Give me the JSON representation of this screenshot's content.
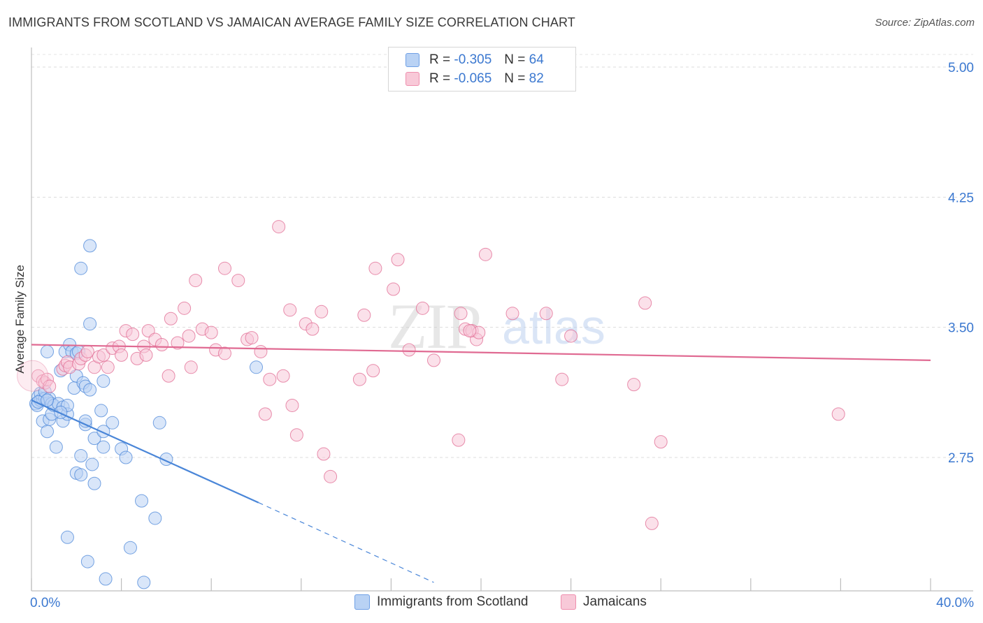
{
  "title": "IMMIGRANTS FROM SCOTLAND VS JAMAICAN AVERAGE FAMILY SIZE CORRELATION CHART",
  "source": "Source: ZipAtlas.com",
  "watermark": {
    "zip": "ZIP",
    "atlas": "atlas"
  },
  "legend": {
    "rows": [
      {
        "r_label": "R =",
        "r_value": "-0.305",
        "n_label": "N =",
        "n_value": "64",
        "color": "#6fa0e6",
        "fill": "#b9d2f4"
      },
      {
        "r_label": "R =",
        "r_value": "-0.065",
        "n_label": "N =",
        "n_value": "82",
        "color": "#ef8fae",
        "fill": "#f8c9d8"
      }
    ]
  },
  "bottom_legend": [
    {
      "label": "Immigrants from Scotland",
      "color": "#6fa0e6",
      "fill": "#b9d2f4"
    },
    {
      "label": "Jamaicans",
      "color": "#ef8fae",
      "fill": "#f8c9d8"
    }
  ],
  "chart_data": {
    "type": "scatter",
    "title": "IMMIGRANTS FROM SCOTLAND VS JAMAICAN AVERAGE FAMILY SIZE CORRELATION CHART",
    "xlabel": "",
    "ylabel": "Average Family Size",
    "xlim": [
      0,
      40
    ],
    "ylim": [
      2.0,
      5.05
    ],
    "x_tick_labels": [
      "0.0%",
      "40.0%"
    ],
    "y_ticks": [
      2.75,
      3.5,
      4.25,
      5.0
    ],
    "y_tick_labels": [
      "2.75",
      "3.50",
      "4.25",
      "5.00"
    ],
    "grid": "horizontal dashed",
    "legend_position": "top-center",
    "series": [
      {
        "name": "Immigrants from Scotland",
        "color": "#4a86d8",
        "fill": "#b9d2f4",
        "trend": {
          "x_start": 0.0,
          "y_start": 3.08,
          "x_solid_end": 10.1,
          "y_solid_end": 2.49,
          "x_dash_end": 17.9,
          "y_dash_end": 2.03
        },
        "points": [
          [
            0.2,
            3.06
          ],
          [
            0.25,
            3.05
          ],
          [
            0.3,
            3.1
          ],
          [
            0.4,
            3.08
          ],
          [
            0.5,
            3.09
          ],
          [
            0.4,
            3.12
          ],
          [
            0.5,
            2.96
          ],
          [
            0.6,
            3.09
          ],
          [
            0.6,
            3.13
          ],
          [
            0.7,
            3.36
          ],
          [
            0.7,
            2.9
          ],
          [
            0.8,
            3.09
          ],
          [
            0.8,
            2.97
          ],
          [
            0.9,
            3.0
          ],
          [
            0.9,
            3.06
          ],
          [
            1.0,
            3.05
          ],
          [
            1.1,
            2.81
          ],
          [
            1.2,
            3.06
          ],
          [
            1.3,
            3.25
          ],
          [
            1.4,
            3.04
          ],
          [
            1.4,
            2.96
          ],
          [
            1.5,
            3.36
          ],
          [
            1.6,
            3.0
          ],
          [
            1.6,
            2.29
          ],
          [
            1.6,
            3.05
          ],
          [
            1.7,
            3.4
          ],
          [
            1.8,
            3.36
          ],
          [
            1.9,
            3.15
          ],
          [
            2.0,
            2.66
          ],
          [
            2.0,
            3.22
          ],
          [
            2.0,
            3.35
          ],
          [
            2.1,
            3.36
          ],
          [
            2.2,
            2.65
          ],
          [
            2.2,
            2.76
          ],
          [
            2.3,
            3.18
          ],
          [
            2.4,
            3.16
          ],
          [
            2.2,
            3.84
          ],
          [
            2.4,
            2.94
          ],
          [
            2.4,
            2.96
          ],
          [
            2.5,
            2.15
          ],
          [
            2.6,
            3.14
          ],
          [
            2.6,
            3.52
          ],
          [
            2.6,
            3.97
          ],
          [
            2.7,
            2.71
          ],
          [
            2.8,
            2.86
          ],
          [
            2.8,
            2.6
          ],
          [
            3.1,
            3.02
          ],
          [
            3.2,
            2.81
          ],
          [
            3.2,
            2.9
          ],
          [
            3.3,
            2.05
          ],
          [
            3.6,
            2.95
          ],
          [
            4.0,
            2.8
          ],
          [
            4.2,
            2.75
          ],
          [
            4.4,
            2.23
          ],
          [
            4.9,
            2.5
          ],
          [
            5.0,
            2.03
          ],
          [
            5.5,
            2.4
          ],
          [
            5.7,
            2.95
          ],
          [
            6.0,
            2.74
          ],
          [
            10.0,
            3.27
          ],
          [
            3.2,
            3.19
          ],
          [
            0.3,
            3.07
          ],
          [
            0.7,
            3.08
          ],
          [
            1.3,
            3.01
          ]
        ]
      },
      {
        "name": "Jamaicans",
        "color": "#e06a92",
        "fill": "#f8c9d8",
        "trend": {
          "x_start": 0.0,
          "y_start": 3.4,
          "x_solid_end": 40.0,
          "y_solid_end": 3.31
        },
        "points": [
          [
            0.3,
            3.22
          ],
          [
            0.5,
            3.19
          ],
          [
            0.6,
            3.18
          ],
          [
            0.7,
            3.2
          ],
          [
            0.8,
            3.16
          ],
          [
            1.4,
            3.26
          ],
          [
            1.5,
            3.28
          ],
          [
            1.6,
            3.3
          ],
          [
            1.7,
            3.27
          ],
          [
            2.1,
            3.29
          ],
          [
            2.2,
            3.32
          ],
          [
            2.4,
            3.34
          ],
          [
            2.5,
            3.36
          ],
          [
            2.8,
            3.27
          ],
          [
            3.0,
            3.33
          ],
          [
            3.2,
            3.34
          ],
          [
            3.4,
            3.27
          ],
          [
            3.6,
            3.38
          ],
          [
            3.9,
            3.39
          ],
          [
            4.0,
            3.34
          ],
          [
            4.2,
            3.48
          ],
          [
            4.5,
            3.46
          ],
          [
            4.7,
            3.32
          ],
          [
            5.0,
            3.39
          ],
          [
            5.1,
            3.34
          ],
          [
            5.2,
            3.48
          ],
          [
            5.5,
            3.43
          ],
          [
            5.8,
            3.4
          ],
          [
            6.1,
            3.22
          ],
          [
            6.2,
            3.55
          ],
          [
            6.5,
            3.41
          ],
          [
            6.8,
            3.61
          ],
          [
            7.0,
            3.45
          ],
          [
            7.1,
            3.27
          ],
          [
            7.3,
            3.77
          ],
          [
            7.6,
            3.49
          ],
          [
            8.0,
            3.47
          ],
          [
            8.2,
            3.37
          ],
          [
            8.6,
            3.84
          ],
          [
            8.6,
            3.35
          ],
          [
            9.2,
            3.77
          ],
          [
            9.6,
            3.43
          ],
          [
            9.8,
            3.44
          ],
          [
            10.2,
            3.36
          ],
          [
            10.4,
            3.0
          ],
          [
            10.6,
            3.2
          ],
          [
            11.0,
            4.08
          ],
          [
            11.2,
            3.22
          ],
          [
            11.5,
            3.6
          ],
          [
            11.6,
            3.05
          ],
          [
            11.8,
            2.88
          ],
          [
            12.2,
            3.52
          ],
          [
            12.5,
            3.49
          ],
          [
            12.9,
            3.59
          ],
          [
            13.0,
            2.77
          ],
          [
            13.3,
            2.64
          ],
          [
            14.6,
            3.2
          ],
          [
            14.8,
            3.57
          ],
          [
            15.2,
            3.25
          ],
          [
            15.3,
            3.84
          ],
          [
            16.1,
            3.72
          ],
          [
            16.3,
            3.89
          ],
          [
            16.8,
            3.37
          ],
          [
            17.4,
            3.61
          ],
          [
            17.9,
            3.31
          ],
          [
            19.0,
            2.85
          ],
          [
            19.1,
            3.58
          ],
          [
            19.3,
            3.49
          ],
          [
            19.6,
            3.48
          ],
          [
            19.8,
            3.43
          ],
          [
            19.9,
            3.47
          ],
          [
            20.2,
            3.92
          ],
          [
            21.4,
            3.58
          ],
          [
            22.9,
            3.58
          ],
          [
            23.6,
            3.2
          ],
          [
            24.0,
            3.45
          ],
          [
            26.8,
            3.17
          ],
          [
            27.3,
            3.64
          ],
          [
            27.6,
            2.37
          ],
          [
            28.0,
            2.84
          ],
          [
            35.9,
            3.0
          ],
          [
            19.5,
            3.48
          ]
        ]
      }
    ]
  }
}
